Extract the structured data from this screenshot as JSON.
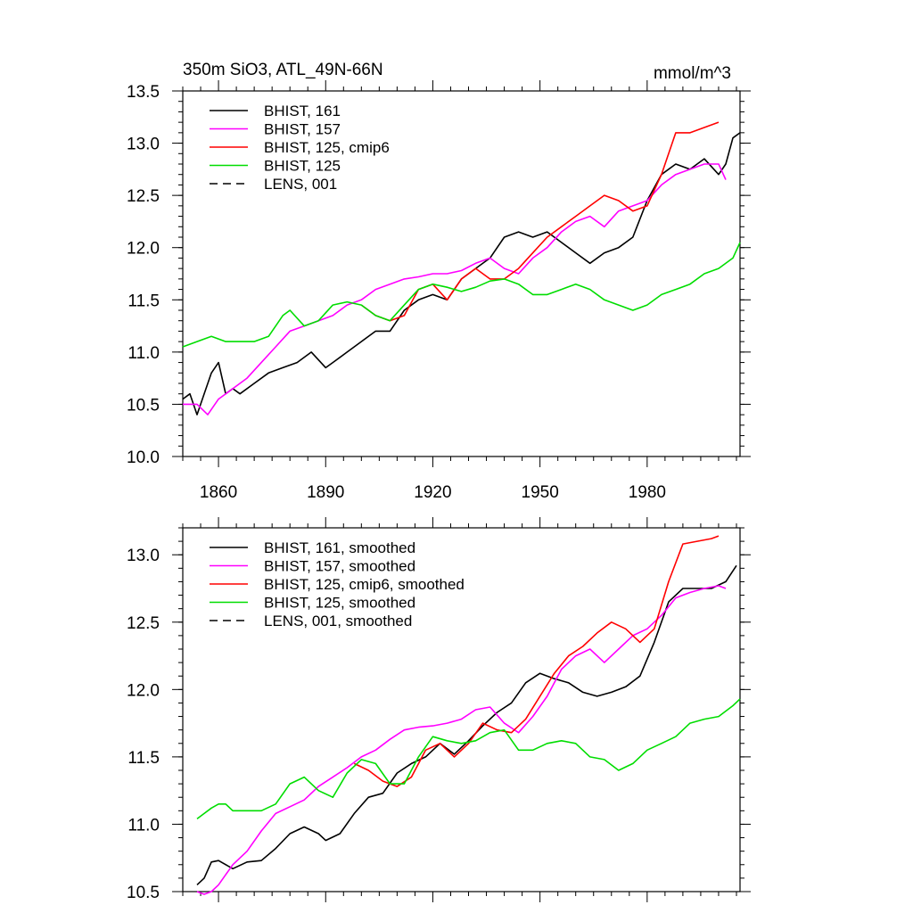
{
  "chart_data": [
    {
      "type": "line",
      "title": "350m SiO3, ATL_49N-66N",
      "units": "mmol/m^3",
      "xlim": [
        1850,
        2006
      ],
      "ylim": [
        10.0,
        13.5
      ],
      "x_ticks": [
        1860,
        1890,
        1920,
        1950,
        1980
      ],
      "y_ticks": [
        10.0,
        10.5,
        11.0,
        11.5,
        12.0,
        12.5,
        13.0,
        13.5
      ],
      "y_tick_labels": [
        "10.0",
        "10.5",
        "11.0",
        "11.5",
        "12.0",
        "12.5",
        "13.0",
        "13.5"
      ],
      "legend_position": "top-left",
      "series": [
        {
          "name": "BHIST, 161",
          "color": "#000000",
          "dash": "solid",
          "x": [
            1850,
            1852,
            1854,
            1856,
            1858,
            1860,
            1862,
            1864,
            1866,
            1870,
            1874,
            1878,
            1882,
            1886,
            1890,
            1892,
            1896,
            1900,
            1904,
            1908,
            1912,
            1916,
            1920,
            1924,
            1928,
            1932,
            1936,
            1940,
            1944,
            1948,
            1952,
            1956,
            1960,
            1964,
            1968,
            1972,
            1976,
            1980,
            1984,
            1988,
            1992,
            1996,
            2000,
            2002,
            2004,
            2006
          ],
          "y": [
            10.55,
            10.6,
            10.4,
            10.6,
            10.8,
            10.9,
            10.6,
            10.65,
            10.6,
            10.7,
            10.8,
            10.85,
            10.9,
            11.0,
            10.85,
            10.9,
            11.0,
            11.1,
            11.2,
            11.2,
            11.4,
            11.5,
            11.55,
            11.5,
            11.7,
            11.8,
            11.9,
            12.1,
            12.15,
            12.1,
            12.15,
            12.05,
            11.95,
            11.85,
            11.95,
            12.0,
            12.1,
            12.45,
            12.7,
            12.8,
            12.75,
            12.85,
            12.7,
            12.8,
            13.05,
            13.1
          ]
        },
        {
          "name": "BHIST, 157",
          "color": "#ff00ff",
          "dash": "solid",
          "x": [
            1850,
            1854,
            1857,
            1860,
            1864,
            1868,
            1872,
            1876,
            1880,
            1884,
            1888,
            1892,
            1896,
            1900,
            1904,
            1908,
            1912,
            1916,
            1920,
            1924,
            1928,
            1932,
            1936,
            1940,
            1944,
            1948,
            1952,
            1956,
            1960,
            1964,
            1968,
            1972,
            1976,
            1980,
            1984,
            1988,
            1992,
            1996,
            2000,
            2002
          ],
          "y": [
            10.5,
            10.5,
            10.4,
            10.55,
            10.65,
            10.75,
            10.9,
            11.05,
            11.2,
            11.25,
            11.3,
            11.35,
            11.45,
            11.5,
            11.6,
            11.65,
            11.7,
            11.72,
            11.75,
            11.75,
            11.78,
            11.85,
            11.9,
            11.8,
            11.75,
            11.9,
            12.0,
            12.15,
            12.25,
            12.3,
            12.2,
            12.35,
            12.4,
            12.45,
            12.6,
            12.7,
            12.75,
            12.8,
            12.8,
            12.65
          ]
        },
        {
          "name": "BHIST, 125, cmip6",
          "color": "#ff0000",
          "dash": "solid",
          "x": [
            1900,
            1904,
            1908,
            1912,
            1916,
            1920,
            1924,
            1928,
            1932,
            1936,
            1940,
            1944,
            1948,
            1952,
            1956,
            1960,
            1964,
            1968,
            1972,
            1976,
            1980,
            1984,
            1988,
            1992,
            1996,
            2000
          ],
          "y": [
            11.45,
            11.35,
            11.3,
            11.35,
            11.6,
            11.65,
            11.5,
            11.7,
            11.8,
            11.7,
            11.7,
            11.8,
            11.95,
            12.1,
            12.2,
            12.3,
            12.4,
            12.5,
            12.45,
            12.35,
            12.4,
            12.7,
            13.1,
            13.1,
            13.15,
            13.2
          ]
        },
        {
          "name": "BHIST, 125",
          "color": "#00dd00",
          "dash": "solid",
          "x": [
            1850,
            1854,
            1858,
            1862,
            1866,
            1870,
            1874,
            1878,
            1880,
            1884,
            1888,
            1892,
            1896,
            1900,
            1904,
            1908,
            1912,
            1916,
            1920,
            1924,
            1928,
            1932,
            1936,
            1940,
            1944,
            1948,
            1952,
            1956,
            1960,
            1964,
            1968,
            1972,
            1976,
            1980,
            1984,
            1988,
            1992,
            1996,
            2000,
            2004,
            2006
          ],
          "y": [
            11.05,
            11.1,
            11.15,
            11.1,
            11.1,
            11.1,
            11.15,
            11.35,
            11.4,
            11.25,
            11.3,
            11.45,
            11.48,
            11.45,
            11.35,
            11.3,
            11.45,
            11.6,
            11.65,
            11.62,
            11.58,
            11.62,
            11.68,
            11.7,
            11.65,
            11.55,
            11.55,
            11.6,
            11.65,
            11.6,
            11.5,
            11.45,
            11.4,
            11.45,
            11.55,
            11.6,
            11.65,
            11.75,
            11.8,
            11.9,
            12.05
          ]
        },
        {
          "name": "LENS, 001",
          "color": "#000000",
          "dash": "dashed",
          "x": [],
          "y": []
        }
      ]
    },
    {
      "type": "line",
      "title": "",
      "xlim": [
        1850,
        2006
      ],
      "ylim": [
        10.5,
        13.2
      ],
      "x_ticks": [
        1860,
        1890,
        1920,
        1950,
        1980
      ],
      "y_ticks": [
        10.5,
        11.0,
        11.5,
        12.0,
        12.5,
        13.0
      ],
      "y_tick_labels": [
        "10.5",
        "11.0",
        "11.5",
        "12.0",
        "12.5",
        "13.0"
      ],
      "legend_position": "top-left",
      "series": [
        {
          "name": "BHIST, 161, smoothed",
          "color": "#000000",
          "dash": "solid",
          "x": [
            1854,
            1856,
            1858,
            1860,
            1864,
            1868,
            1872,
            1876,
            1880,
            1884,
            1888,
            1890,
            1894,
            1898,
            1902,
            1906,
            1910,
            1914,
            1918,
            1922,
            1926,
            1930,
            1934,
            1938,
            1942,
            1946,
            1950,
            1954,
            1958,
            1962,
            1966,
            1970,
            1974,
            1978,
            1982,
            1986,
            1990,
            1994,
            1998,
            2002,
            2005
          ],
          "y": [
            10.55,
            10.6,
            10.72,
            10.73,
            10.67,
            10.72,
            10.73,
            10.82,
            10.93,
            10.98,
            10.93,
            10.88,
            10.93,
            11.08,
            11.2,
            11.23,
            11.38,
            11.45,
            11.5,
            11.6,
            11.52,
            11.62,
            11.73,
            11.83,
            11.9,
            12.05,
            12.12,
            12.08,
            12.05,
            11.98,
            11.95,
            11.98,
            12.02,
            12.1,
            12.35,
            12.65,
            12.75,
            12.75,
            12.75,
            12.8,
            12.92
          ]
        },
        {
          "name": "BHIST, 157, smoothed",
          "color": "#ff00ff",
          "dash": "solid",
          "x": [
            1854,
            1856,
            1858,
            1860,
            1864,
            1868,
            1872,
            1876,
            1880,
            1884,
            1888,
            1892,
            1896,
            1900,
            1904,
            1908,
            1912,
            1916,
            1920,
            1924,
            1928,
            1932,
            1936,
            1940,
            1944,
            1948,
            1952,
            1956,
            1960,
            1964,
            1968,
            1972,
            1976,
            1980,
            1984,
            1988,
            1992,
            1996,
            2000,
            2002
          ],
          "y": [
            10.5,
            10.48,
            10.5,
            10.55,
            10.7,
            10.8,
            10.95,
            11.08,
            11.13,
            11.18,
            11.28,
            11.35,
            11.42,
            11.5,
            11.55,
            11.63,
            11.7,
            11.72,
            11.73,
            11.75,
            11.78,
            11.85,
            11.87,
            11.75,
            11.68,
            11.8,
            11.95,
            12.15,
            12.25,
            12.3,
            12.2,
            12.3,
            12.4,
            12.45,
            12.55,
            12.68,
            12.72,
            12.75,
            12.77,
            12.75
          ]
        },
        {
          "name": "BHIST, 125, cmip6, smoothed",
          "color": "#ff0000",
          "dash": "solid",
          "x": [
            1898,
            1902,
            1906,
            1910,
            1914,
            1918,
            1922,
            1926,
            1930,
            1934,
            1938,
            1942,
            1946,
            1950,
            1954,
            1958,
            1962,
            1966,
            1970,
            1974,
            1978,
            1982,
            1986,
            1990,
            1994,
            1998,
            2000
          ],
          "y": [
            11.45,
            11.4,
            11.32,
            11.28,
            11.35,
            11.55,
            11.6,
            11.5,
            11.6,
            11.75,
            11.7,
            11.68,
            11.78,
            11.95,
            12.12,
            12.25,
            12.32,
            12.42,
            12.5,
            12.45,
            12.35,
            12.45,
            12.8,
            13.08,
            13.1,
            13.12,
            13.14
          ]
        },
        {
          "name": "BHIST, 125, smoothed",
          "color": "#00dd00",
          "dash": "solid",
          "x": [
            1854,
            1856,
            1858,
            1860,
            1862,
            1864,
            1868,
            1872,
            1876,
            1880,
            1884,
            1888,
            1892,
            1896,
            1900,
            1904,
            1908,
            1912,
            1916,
            1920,
            1924,
            1928,
            1932,
            1936,
            1940,
            1944,
            1948,
            1952,
            1956,
            1960,
            1964,
            1968,
            1972,
            1976,
            1980,
            1984,
            1988,
            1992,
            1996,
            2000,
            2004,
            2006
          ],
          "y": [
            11.04,
            11.08,
            11.12,
            11.15,
            11.15,
            11.1,
            11.1,
            11.1,
            11.15,
            11.3,
            11.35,
            11.25,
            11.2,
            11.38,
            11.48,
            11.45,
            11.3,
            11.3,
            11.5,
            11.65,
            11.62,
            11.6,
            11.62,
            11.68,
            11.7,
            11.55,
            11.55,
            11.6,
            11.62,
            11.6,
            11.5,
            11.48,
            11.4,
            11.45,
            11.55,
            11.6,
            11.65,
            11.75,
            11.78,
            11.8,
            11.88,
            11.93
          ]
        },
        {
          "name": "LENS, 001, smoothed",
          "color": "#000000",
          "dash": "dashed",
          "x": [],
          "y": []
        }
      ]
    }
  ]
}
